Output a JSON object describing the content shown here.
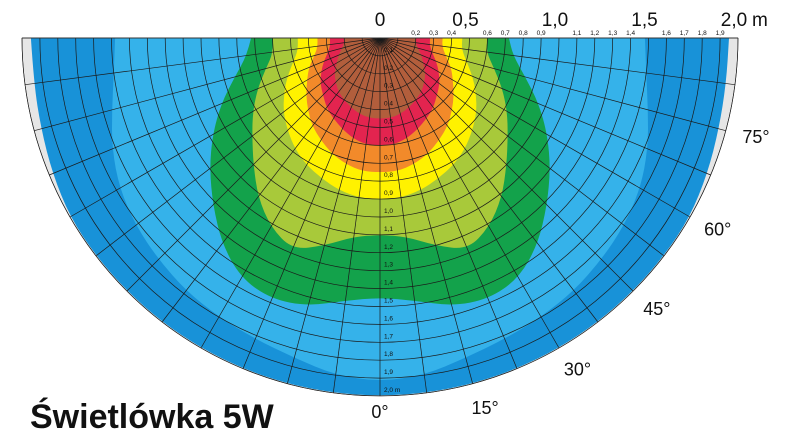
{
  "title": "Świetlówka 5W",
  "chart_data": {
    "type": "polar-contour",
    "unit": "m",
    "scale_major": [
      "0",
      "0,5",
      "1,0",
      "1,5",
      "2,0"
    ],
    "scale_minor": [
      "0,2",
      "0,3",
      "0,4",
      "0,6",
      "0,7",
      "0,8",
      "0,9",
      "1,1",
      "1,2",
      "1,3",
      "1,4",
      "1,6",
      "1,7",
      "1,8",
      "1,9"
    ],
    "ring_labels": [
      "0,1",
      "0,2",
      "0,3",
      "0,4",
      "0,5",
      "0,6",
      "0,7",
      "0,8",
      "0,9",
      "1,0",
      "1,1",
      "1,2",
      "1,3",
      "1,4",
      "1,5",
      "1,6",
      "1,7",
      "1,8",
      "1,9",
      "2,0 m"
    ],
    "angle_labels": [
      "0°",
      "15°",
      "30°",
      "45°",
      "60°",
      "75°"
    ],
    "zones": [
      {
        "level": 1,
        "color": "#b25e3c",
        "max_distance": [
          0.45,
          0.45,
          0.44,
          0.42,
          0.4,
          0.38,
          0.35,
          0.32,
          0.28,
          0.25,
          0.22,
          0.2,
          0.2
        ]
      },
      {
        "level": 2,
        "color": "#e3244f",
        "max_distance": [
          0.6,
          0.6,
          0.58,
          0.55,
          0.52,
          0.49,
          0.45,
          0.42,
          0.38,
          0.34,
          0.3,
          0.28,
          0.28
        ]
      },
      {
        "level": 3,
        "color": "#f28a2a",
        "max_distance": [
          0.75,
          0.75,
          0.73,
          0.7,
          0.66,
          0.62,
          0.57,
          0.52,
          0.47,
          0.43,
          0.38,
          0.35,
          0.35
        ]
      },
      {
        "level": 4,
        "color": "#fff200",
        "max_distance": [
          0.9,
          0.9,
          0.88,
          0.85,
          0.82,
          0.78,
          0.73,
          0.68,
          0.62,
          0.56,
          0.5,
          0.46,
          0.46
        ]
      },
      {
        "level": 5,
        "color": "#a8c93a",
        "max_distance": [
          1.1,
          1.12,
          1.2,
          1.28,
          1.22,
          1.12,
          1.0,
          0.9,
          0.82,
          0.74,
          0.66,
          0.6,
          0.6
        ]
      },
      {
        "level": 6,
        "color": "#13a24b",
        "max_distance": [
          1.45,
          1.48,
          1.55,
          1.58,
          1.55,
          1.45,
          1.32,
          1.2,
          1.08,
          0.96,
          0.84,
          0.75,
          0.72
        ]
      },
      {
        "level": 7,
        "color": "#35b2ea",
        "max_distance": [
          1.92,
          1.9,
          1.85,
          1.82,
          1.8,
          1.78,
          1.75,
          1.72,
          1.68,
          1.62,
          1.55,
          1.5,
          1.48
        ]
      },
      {
        "level": 8,
        "color": "#1892d8",
        "max_distance": [
          2.0,
          2.0,
          2.0,
          2.0,
          2.0,
          2.0,
          2.0,
          2.0,
          2.0,
          1.98,
          1.96,
          1.95,
          1.95
        ]
      }
    ],
    "zone_angles_deg": [
      0,
      7.5,
      15,
      22.5,
      30,
      37.5,
      45,
      52.5,
      60,
      67.5,
      75,
      82.5,
      90
    ],
    "range_m": [
      0,
      2.0
    ],
    "ring_step_m": 0.1,
    "ray_step_deg": 7.5,
    "outer_color": "#e6e6e6",
    "grid_color": "#1a1a1a"
  }
}
